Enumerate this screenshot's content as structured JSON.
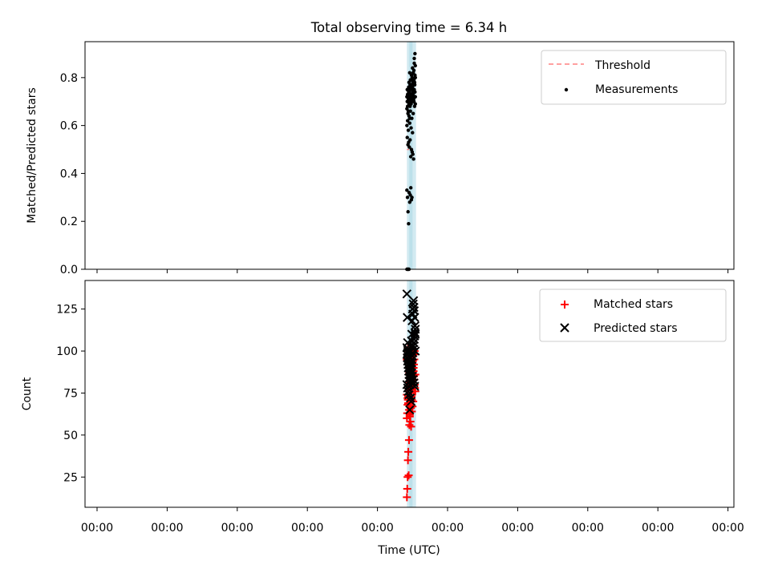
{
  "figure": {
    "title": "Total observing time = 6.34 h"
  },
  "colors": {
    "threshold": "#ff8080",
    "measurements": "#000000",
    "matched": "#ff0000",
    "predicted": "#000000",
    "band": "#add8e6"
  },
  "chart_data": [
    {
      "type": "scatter",
      "title": "Total observing time = 6.34 h",
      "ylabel": "Matched/Predicted stars",
      "xlabel": "",
      "ylim": [
        0,
        0.95
      ],
      "yticks": [
        "0.0",
        "0.2",
        "0.4",
        "0.6",
        "0.8"
      ],
      "xtick_labels": [
        "00:00",
        "00:00",
        "00:00",
        "00:00",
        "00:00",
        "00:00",
        "00:00",
        "00:00",
        "00:00",
        "00:00"
      ],
      "grid": false,
      "legend_position": "top-right",
      "legend": [
        "Threshold",
        "Measurements"
      ],
      "threshold": {
        "name": "Threshold",
        "value": 0.5,
        "x_range": [
          4.42,
          4.45
        ]
      },
      "observing_band": [
        4.42,
        4.55
      ],
      "series": [
        {
          "name": "Measurements",
          "x": [
            4.42,
            4.425,
            4.43,
            4.435,
            4.44,
            4.445,
            4.45,
            4.455,
            4.46,
            4.465,
            4.47,
            4.475,
            4.48,
            4.485,
            4.49,
            4.495,
            4.5,
            4.505,
            4.51,
            4.515,
            4.52,
            4.525,
            4.53,
            4.535,
            4.54,
            4.42,
            4.425,
            4.43,
            4.435,
            4.44,
            4.445,
            4.45,
            4.455,
            4.46,
            4.465,
            4.47,
            4.475,
            4.48,
            4.485,
            4.49,
            4.495,
            4.5,
            4.505,
            4.51,
            4.515,
            4.52,
            4.525,
            4.53,
            4.535,
            4.54,
            4.42,
            4.43,
            4.44,
            4.45,
            4.46,
            4.47,
            4.48,
            4.49,
            4.5,
            4.51,
            4.52,
            4.53,
            4.54,
            4.425,
            4.435,
            4.445,
            4.455,
            4.465,
            4.475,
            4.485,
            4.495,
            4.505,
            4.515,
            4.525,
            4.535,
            4.42,
            4.428,
            4.436,
            4.444,
            4.452,
            4.46,
            4.468,
            4.476,
            4.484,
            4.492,
            4.5,
            4.508,
            4.516,
            4.524,
            4.532,
            4.54,
            4.42,
            4.43,
            4.44,
            4.45,
            4.46,
            4.47,
            4.48,
            4.49,
            4.5
          ],
          "y": [
            0.72,
            0.75,
            0.68,
            0.7,
            0.66,
            0.74,
            0.78,
            0.71,
            0.63,
            0.77,
            0.79,
            0.73,
            0.69,
            0.81,
            0.76,
            0.72,
            0.84,
            0.78,
            0.82,
            0.75,
            0.79,
            0.86,
            0.77,
            0.74,
            0.8,
            0.67,
            0.7,
            0.73,
            0.65,
            0.71,
            0.76,
            0.69,
            0.74,
            0.72,
            0.68,
            0.75,
            0.71,
            0.7,
            0.77,
            0.73,
            0.8,
            0.76,
            0.74,
            0.79,
            0.72,
            0.83,
            0.75,
            0.78,
            0.81,
            0.85,
            0.6,
            0.62,
            0.58,
            0.64,
            0.61,
            0.66,
            0.59,
            0.63,
            0.57,
            0.65,
            0.7,
            0.68,
            0.72,
            0.55,
            0.52,
            0.53,
            0.51,
            0.54,
            0.47,
            0.5,
            0.49,
            0.48,
            0.46,
            0.88,
            0.9,
            0.33,
            0.3,
            0.24,
            0.19,
            0.32,
            0.28,
            0.31,
            0.34,
            0.29,
            0.3,
            0.75,
            0.73,
            0.71,
            0.74,
            0.77,
            0.69,
            0.0,
            0.0,
            0.0,
            0.0,
            0.82,
            0.79,
            0.76,
            0.72,
            0.7
          ]
        }
      ]
    },
    {
      "type": "scatter",
      "title": "",
      "ylabel": "Count",
      "xlabel": "Time (UTC)",
      "ylim": [
        7,
        142
      ],
      "yticks": [
        "25",
        "50",
        "75",
        "100",
        "125"
      ],
      "xtick_labels": [
        "00:00",
        "00:00",
        "00:00",
        "00:00",
        "00:00",
        "00:00",
        "00:00",
        "00:00",
        "00:00",
        "00:00"
      ],
      "grid": false,
      "legend_position": "top-right",
      "legend": [
        "Matched stars",
        "Predicted stars"
      ],
      "observing_band": [
        4.42,
        4.55
      ],
      "series": [
        {
          "name": "Matched stars",
          "x": [
            4.42,
            4.425,
            4.43,
            4.435,
            4.44,
            4.445,
            4.45,
            4.455,
            4.46,
            4.465,
            4.47,
            4.475,
            4.48,
            4.485,
            4.49,
            4.495,
            4.5,
            4.505,
            4.51,
            4.515,
            4.52,
            4.525,
            4.53,
            4.535,
            4.54,
            4.42,
            4.425,
            4.43,
            4.435,
            4.44,
            4.445,
            4.45,
            4.455,
            4.46,
            4.465,
            4.47,
            4.475,
            4.48,
            4.485,
            4.49,
            4.495,
            4.5,
            4.505,
            4.51,
            4.515,
            4.52,
            4.525,
            4.53,
            4.535,
            4.54,
            4.42,
            4.43,
            4.44,
            4.45,
            4.46,
            4.47,
            4.48,
            4.49,
            4.5,
            4.51,
            4.42,
            4.425,
            4.43,
            4.435,
            4.44,
            4.445,
            4.45,
            4.455,
            4.46,
            4.465,
            4.47,
            4.475,
            4.48,
            4.485,
            4.49
          ],
          "y": [
            13,
            18,
            25,
            35,
            40,
            26,
            47,
            56,
            62,
            67,
            70,
            66,
            72,
            75,
            78,
            80,
            83,
            85,
            88,
            90,
            92,
            95,
            100,
            98,
            86,
            60,
            63,
            68,
            71,
            73,
            77,
            79,
            82,
            84,
            87,
            89,
            91,
            93,
            96,
            99,
            101,
            97,
            94,
            90,
            88,
            85,
            83,
            80,
            78,
            76,
            74,
            72,
            69,
            65,
            61,
            58,
            55,
            64,
            67,
            70,
            95,
            98,
            100,
            102,
            97,
            93,
            90,
            87,
            84,
            81,
            79,
            77,
            75,
            73,
            71
          ]
        },
        {
          "name": "Predicted stars",
          "x": [
            4.42,
            4.425,
            4.43,
            4.435,
            4.44,
            4.445,
            4.45,
            4.455,
            4.46,
            4.465,
            4.47,
            4.475,
            4.48,
            4.485,
            4.49,
            4.495,
            4.5,
            4.505,
            4.51,
            4.515,
            4.52,
            4.525,
            4.53,
            4.535,
            4.54,
            4.42,
            4.425,
            4.43,
            4.435,
            4.44,
            4.445,
            4.45,
            4.455,
            4.46,
            4.465,
            4.47,
            4.475,
            4.48,
            4.485,
            4.49,
            4.495,
            4.5,
            4.505,
            4.51,
            4.515,
            4.52,
            4.525,
            4.53,
            4.535,
            4.54,
            4.42,
            4.43,
            4.44,
            4.45,
            4.46,
            4.47,
            4.48,
            4.49,
            4.5,
            4.51,
            4.52,
            4.53,
            4.54,
            4.42,
            4.43,
            4.44,
            4.45,
            4.46,
            4.47,
            4.48
          ],
          "y": [
            134,
            120,
            105,
            100,
            95,
            92,
            90,
            88,
            86,
            84,
            82,
            100,
            103,
            106,
            110,
            118,
            125,
            122,
            128,
            130,
            126,
            124,
            120,
            115,
            110,
            98,
            96,
            94,
            92,
            90,
            88,
            86,
            84,
            82,
            80,
            85,
            87,
            89,
            91,
            93,
            95,
            97,
            99,
            101,
            103,
            105,
            107,
            109,
            111,
            113,
            102,
            99,
            97,
            95,
            93,
            91,
            89,
            87,
            85,
            83,
            81,
            79,
            100,
            80,
            78,
            76,
            74,
            65,
            72,
            70
          ]
        }
      ]
    }
  ]
}
